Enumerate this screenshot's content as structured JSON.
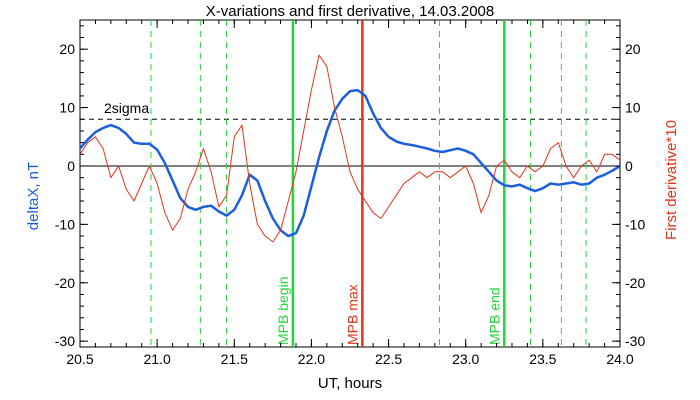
{
  "chart_data": {
    "type": "line",
    "title": "X-variations and first derivative, 14.03.2008",
    "xlabel": "UT, hours",
    "ylabel_left": "deltaX, nT",
    "ylabel_right": "First derivative*10",
    "xlim": [
      20.5,
      24.0
    ],
    "ylim": [
      -31,
      25
    ],
    "x_ticks": [
      "20.5",
      "21.0",
      "21.5",
      "22.0",
      "22.5",
      "23.0",
      "23.5",
      "24.0"
    ],
    "y_ticks_left": [
      "-30",
      "-20",
      "-10",
      "0",
      "10",
      "20"
    ],
    "y_ticks_right": [
      "-30",
      "-20",
      "-10",
      "0",
      "10",
      "20"
    ],
    "sigma_level": 8,
    "sigma_label": "2sigma",
    "colors": {
      "deltaX": "#1b5fe0",
      "derivative": "#e0351b",
      "mpb_begin_end": "#22d63a",
      "mpb_max": "#e0351b",
      "dashed_green": "#22d63a",
      "axis": "#000000"
    },
    "vertical_markers": [
      {
        "x": 21.88,
        "label": "MPB begin",
        "color": "#22d63a"
      },
      {
        "x": 22.33,
        "label": "MPB max",
        "color": "#e0351b"
      },
      {
        "x": 23.25,
        "label": "MPB end",
        "color": "#22d63a"
      }
    ],
    "dashed_vertical_x": [
      20.96,
      21.28,
      21.45,
      22.83,
      23.42,
      23.62,
      23.78
    ],
    "series": [
      {
        "name": "deltaX",
        "color": "#1b5fe0",
        "x": [
          20.5,
          20.55,
          20.6,
          20.65,
          20.7,
          20.75,
          20.8,
          20.85,
          20.9,
          20.95,
          21.0,
          21.05,
          21.1,
          21.15,
          21.2,
          21.25,
          21.3,
          21.35,
          21.4,
          21.45,
          21.5,
          21.55,
          21.6,
          21.65,
          21.7,
          21.75,
          21.8,
          21.85,
          21.9,
          21.95,
          22.0,
          22.05,
          22.1,
          22.15,
          22.2,
          22.25,
          22.3,
          22.35,
          22.4,
          22.45,
          22.5,
          22.55,
          22.6,
          22.65,
          22.7,
          22.75,
          22.8,
          22.85,
          22.9,
          22.95,
          23.0,
          23.05,
          23.1,
          23.15,
          23.2,
          23.25,
          23.3,
          23.35,
          23.4,
          23.45,
          23.5,
          23.55,
          23.6,
          23.65,
          23.7,
          23.75,
          23.8,
          23.85,
          23.9,
          23.95,
          24.0
        ],
        "values": [
          3,
          4.5,
          5.8,
          6.5,
          7.0,
          6.5,
          5.5,
          4.0,
          3.8,
          3.8,
          2.8,
          0.5,
          -2.5,
          -5.5,
          -7.0,
          -7.5,
          -7.0,
          -6.8,
          -7.8,
          -8.5,
          -7.5,
          -5.0,
          -1.5,
          -2.5,
          -6.0,
          -9.0,
          -11.0,
          -12.0,
          -11.5,
          -8.5,
          -3.5,
          1.5,
          6.0,
          9.5,
          11.5,
          12.8,
          13.0,
          12.0,
          9.0,
          6.5,
          5.0,
          4.2,
          3.8,
          3.6,
          3.3,
          3.0,
          2.6,
          2.4,
          2.7,
          3.0,
          2.6,
          2.0,
          0.5,
          -1.0,
          -2.5,
          -3.3,
          -3.5,
          -3.2,
          -3.8,
          -4.3,
          -3.8,
          -3.0,
          -3.2,
          -3.0,
          -2.8,
          -3.2,
          -3.0,
          -2.0,
          -1.5,
          -0.8,
          0.0
        ]
      },
      {
        "name": "First derivative*10",
        "color": "#e0351b",
        "x": [
          20.5,
          20.55,
          20.6,
          20.65,
          20.7,
          20.75,
          20.8,
          20.85,
          20.9,
          20.95,
          21.0,
          21.05,
          21.1,
          21.15,
          21.2,
          21.25,
          21.3,
          21.35,
          21.4,
          21.45,
          21.5,
          21.55,
          21.6,
          21.65,
          21.7,
          21.75,
          21.8,
          21.85,
          21.9,
          21.95,
          22.0,
          22.05,
          22.1,
          22.15,
          22.2,
          22.25,
          22.3,
          22.35,
          22.4,
          22.45,
          22.5,
          22.55,
          22.6,
          22.65,
          22.7,
          22.75,
          22.8,
          22.85,
          22.9,
          22.95,
          23.0,
          23.05,
          23.1,
          23.15,
          23.2,
          23.25,
          23.3,
          23.35,
          23.4,
          23.45,
          23.5,
          23.55,
          23.6,
          23.65,
          23.7,
          23.75,
          23.8,
          23.85,
          23.9,
          23.95,
          24.0
        ],
        "values": [
          2,
          4,
          5,
          3,
          -2,
          0,
          -4,
          -6,
          -3,
          0,
          -3,
          -8,
          -11,
          -9,
          -4,
          -1,
          3,
          -1,
          -7,
          -5,
          5,
          7,
          -3,
          -10,
          -12,
          -13,
          -11,
          -6,
          -1,
          6,
          13,
          19,
          17,
          10,
          5,
          -1,
          -4,
          -6,
          -8,
          -9,
          -7,
          -5,
          -3,
          -2,
          -1,
          -2,
          -1,
          -1,
          -2,
          -1,
          0,
          -3,
          -8,
          -5,
          0,
          1,
          -1,
          -2,
          0,
          -1,
          0,
          3,
          4,
          0,
          -2,
          0,
          1,
          -1,
          2,
          2,
          1
        ]
      }
    ]
  }
}
